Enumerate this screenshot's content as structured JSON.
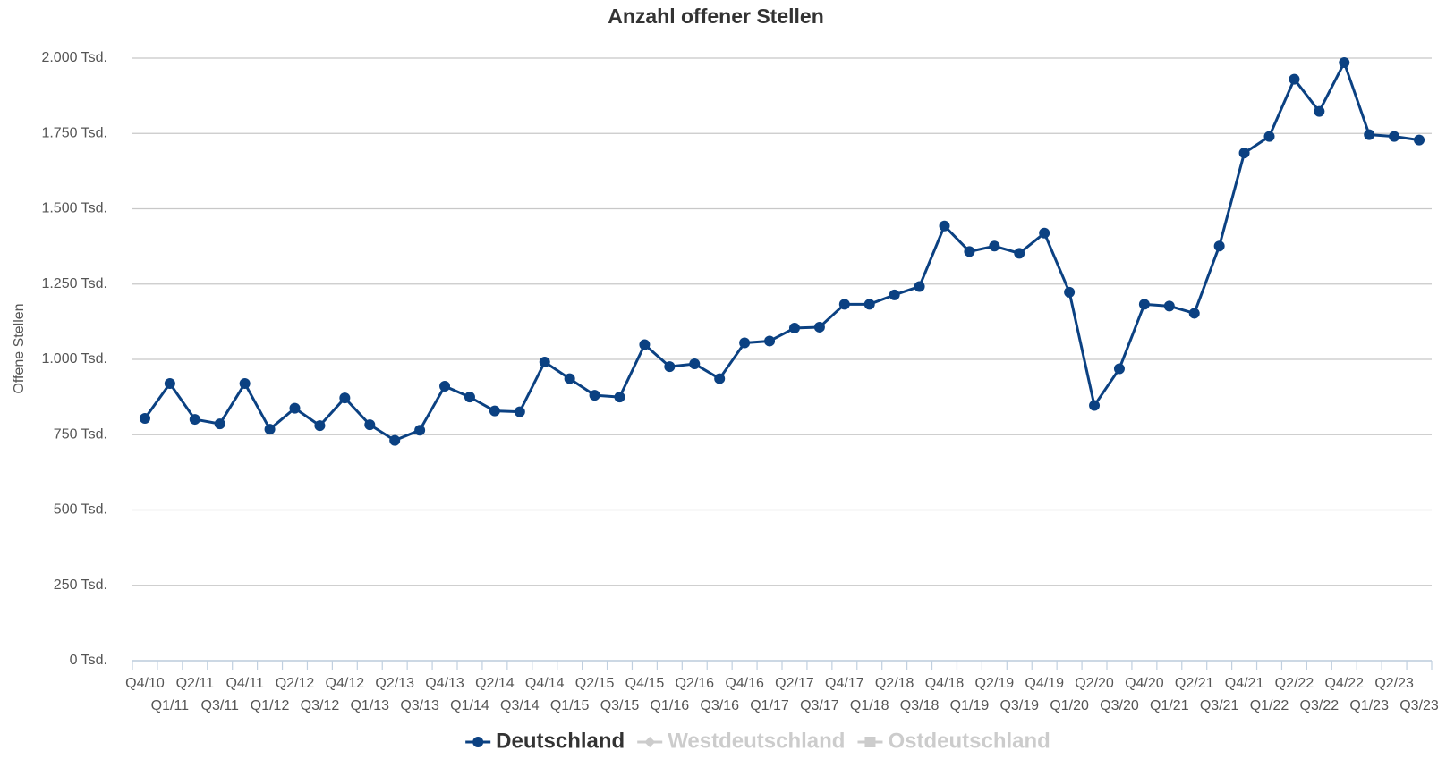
{
  "chart_data": {
    "type": "line",
    "title": "Anzahl offener Stellen",
    "y_label": "Offene Stellen",
    "categories": [
      "Q4/10",
      "Q1/11",
      "Q2/11",
      "Q3/11",
      "Q4/11",
      "Q1/12",
      "Q2/12",
      "Q3/12",
      "Q4/12",
      "Q1/13",
      "Q2/13",
      "Q3/13",
      "Q4/13",
      "Q1/14",
      "Q2/14",
      "Q3/14",
      "Q4/14",
      "Q1/15",
      "Q2/15",
      "Q3/15",
      "Q4/15",
      "Q1/16",
      "Q2/16",
      "Q3/16",
      "Q4/16",
      "Q1/17",
      "Q2/17",
      "Q3/17",
      "Q4/17",
      "Q1/18",
      "Q2/18",
      "Q3/18",
      "Q4/18",
      "Q1/19",
      "Q2/19",
      "Q3/19",
      "Q4/19",
      "Q1/20",
      "Q2/20",
      "Q3/20",
      "Q4/20",
      "Q1/21",
      "Q2/21",
      "Q3/21",
      "Q4/21",
      "Q1/22",
      "Q2/22",
      "Q3/22",
      "Q4/22",
      "Q1/23",
      "Q2/23",
      "Q3/23"
    ],
    "series": [
      {
        "name": "Deutschland",
        "color": "#0b4182",
        "values": [
          804,
          920,
          801,
          786,
          920,
          768,
          838,
          780,
          872,
          783,
          731,
          765,
          911,
          875,
          829,
          826,
          991,
          936,
          881,
          875,
          1049,
          976,
          985,
          936,
          1055,
          1061,
          1104,
          1107,
          1183,
          1183,
          1214,
          1242,
          1443,
          1358,
          1376,
          1352,
          1419,
          1223,
          847,
          969,
          1183,
          1177,
          1153,
          1376,
          1685,
          1740,
          1930,
          1823,
          1985,
          1746,
          1740,
          1728
        ]
      }
    ],
    "hidden_series": [
      {
        "name": "Westdeutschland",
        "color": "#cccccc",
        "marker": "diamond"
      },
      {
        "name": "Ostdeutschland",
        "color": "#cccccc",
        "marker": "square"
      }
    ],
    "ylim": [
      0,
      2000
    ],
    "yticks": [
      {
        "value": 0,
        "label": "0 Tsd."
      },
      {
        "value": 250,
        "label": "250 Tsd."
      },
      {
        "value": 500,
        "label": "500 Tsd."
      },
      {
        "value": 750,
        "label": "750 Tsd."
      },
      {
        "value": 1000,
        "label": "1.000 Tsd."
      },
      {
        "value": 1250,
        "label": "1.250 Tsd."
      },
      {
        "value": 1500,
        "label": "1.500 Tsd."
      },
      {
        "value": 1750,
        "label": "1.750 Tsd."
      },
      {
        "value": 2000,
        "label": "2.000 Tsd."
      }
    ],
    "grid": true,
    "legend": "bottom"
  }
}
